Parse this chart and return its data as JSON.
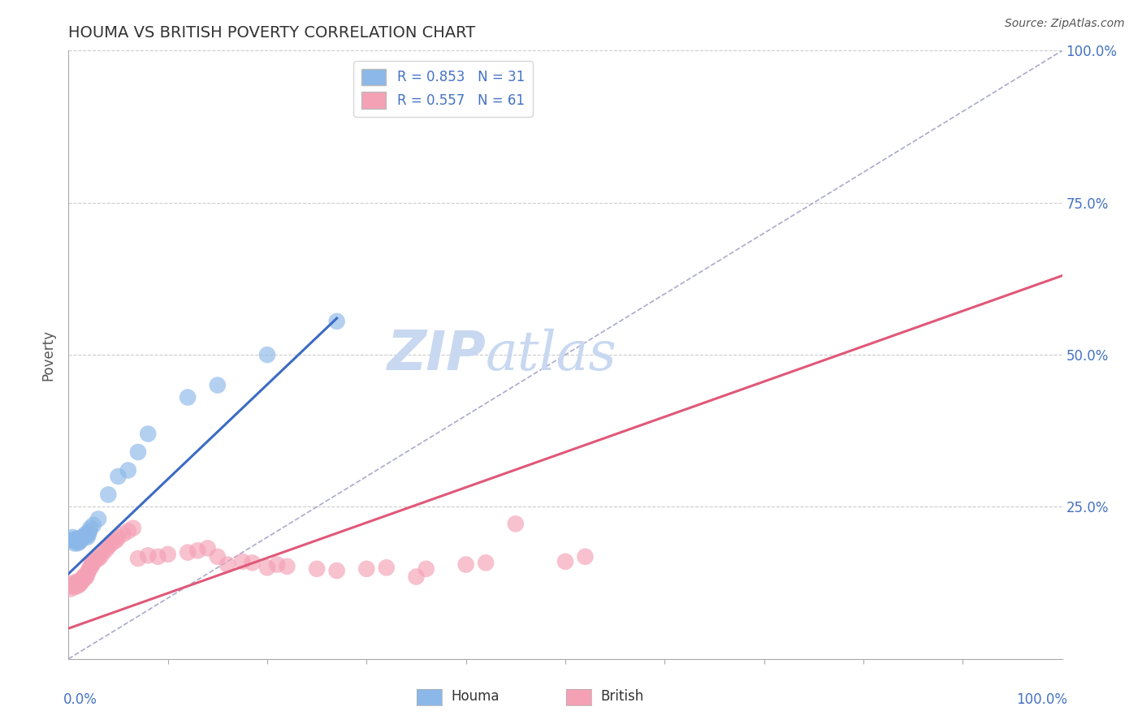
{
  "title": "HOUMA VS BRITISH POVERTY CORRELATION CHART",
  "source": "Source: ZipAtlas.com",
  "ylabel": "Poverty",
  "xlim": [
    0,
    1
  ],
  "ylim": [
    0,
    1
  ],
  "legend_houma": "R = 0.853   N = 31",
  "legend_british": "R = 0.557   N = 61",
  "houma_color": "#8BB8E8",
  "british_color": "#F4A0B5",
  "houma_line_color": "#3B6BC4",
  "british_line_color": "#E05878",
  "diagonal_color": "#AAAACC",
  "watermark": "ZIPatlas",
  "watermark_color": "#C8D8F0",
  "tick_label_color": "#4472C4",
  "title_color": "#333333",
  "houma_line": [
    0.0,
    0.14,
    0.27,
    0.56
  ],
  "british_line": [
    0.0,
    0.05,
    1.0,
    0.63
  ],
  "houma_points": [
    [
      0.003,
      0.195
    ],
    [
      0.004,
      0.2
    ],
    [
      0.005,
      0.195
    ],
    [
      0.006,
      0.19
    ],
    [
      0.007,
      0.195
    ],
    [
      0.008,
      0.198
    ],
    [
      0.009,
      0.19
    ],
    [
      0.01,
      0.195
    ],
    [
      0.011,
      0.192
    ],
    [
      0.012,
      0.195
    ],
    [
      0.013,
      0.198
    ],
    [
      0.014,
      0.2
    ],
    [
      0.015,
      0.2
    ],
    [
      0.016,
      0.202
    ],
    [
      0.017,
      0.205
    ],
    [
      0.018,
      0.202
    ],
    [
      0.019,
      0.2
    ],
    [
      0.02,
      0.205
    ],
    [
      0.021,
      0.21
    ],
    [
      0.022,
      0.215
    ],
    [
      0.025,
      0.22
    ],
    [
      0.03,
      0.23
    ],
    [
      0.04,
      0.27
    ],
    [
      0.05,
      0.3
    ],
    [
      0.06,
      0.31
    ],
    [
      0.07,
      0.34
    ],
    [
      0.08,
      0.37
    ],
    [
      0.12,
      0.43
    ],
    [
      0.15,
      0.45
    ],
    [
      0.2,
      0.5
    ],
    [
      0.27,
      0.555
    ]
  ],
  "british_points": [
    [
      0.002,
      0.115
    ],
    [
      0.004,
      0.12
    ],
    [
      0.005,
      0.125
    ],
    [
      0.006,
      0.118
    ],
    [
      0.007,
      0.125
    ],
    [
      0.008,
      0.122
    ],
    [
      0.009,
      0.12
    ],
    [
      0.01,
      0.128
    ],
    [
      0.011,
      0.122
    ],
    [
      0.012,
      0.125
    ],
    [
      0.013,
      0.13
    ],
    [
      0.014,
      0.128
    ],
    [
      0.015,
      0.135
    ],
    [
      0.016,
      0.132
    ],
    [
      0.017,
      0.138
    ],
    [
      0.018,
      0.135
    ],
    [
      0.019,
      0.14
    ],
    [
      0.02,
      0.145
    ],
    [
      0.021,
      0.148
    ],
    [
      0.022,
      0.15
    ],
    [
      0.023,
      0.155
    ],
    [
      0.024,
      0.155
    ],
    [
      0.025,
      0.16
    ],
    [
      0.027,
      0.162
    ],
    [
      0.03,
      0.165
    ],
    [
      0.032,
      0.168
    ],
    [
      0.035,
      0.175
    ],
    [
      0.038,
      0.18
    ],
    [
      0.04,
      0.185
    ],
    [
      0.042,
      0.188
    ],
    [
      0.045,
      0.192
    ],
    [
      0.048,
      0.195
    ],
    [
      0.05,
      0.2
    ],
    [
      0.055,
      0.205
    ],
    [
      0.06,
      0.21
    ],
    [
      0.065,
      0.215
    ],
    [
      0.07,
      0.165
    ],
    [
      0.08,
      0.17
    ],
    [
      0.09,
      0.168
    ],
    [
      0.1,
      0.172
    ],
    [
      0.12,
      0.175
    ],
    [
      0.13,
      0.178
    ],
    [
      0.14,
      0.182
    ],
    [
      0.15,
      0.168
    ],
    [
      0.16,
      0.155
    ],
    [
      0.175,
      0.16
    ],
    [
      0.185,
      0.158
    ],
    [
      0.2,
      0.15
    ],
    [
      0.21,
      0.155
    ],
    [
      0.22,
      0.152
    ],
    [
      0.25,
      0.148
    ],
    [
      0.27,
      0.145
    ],
    [
      0.3,
      0.148
    ],
    [
      0.32,
      0.15
    ],
    [
      0.35,
      0.135
    ],
    [
      0.36,
      0.148
    ],
    [
      0.4,
      0.155
    ],
    [
      0.42,
      0.158
    ],
    [
      0.45,
      0.222
    ],
    [
      0.5,
      0.16
    ],
    [
      0.52,
      0.168
    ]
  ]
}
